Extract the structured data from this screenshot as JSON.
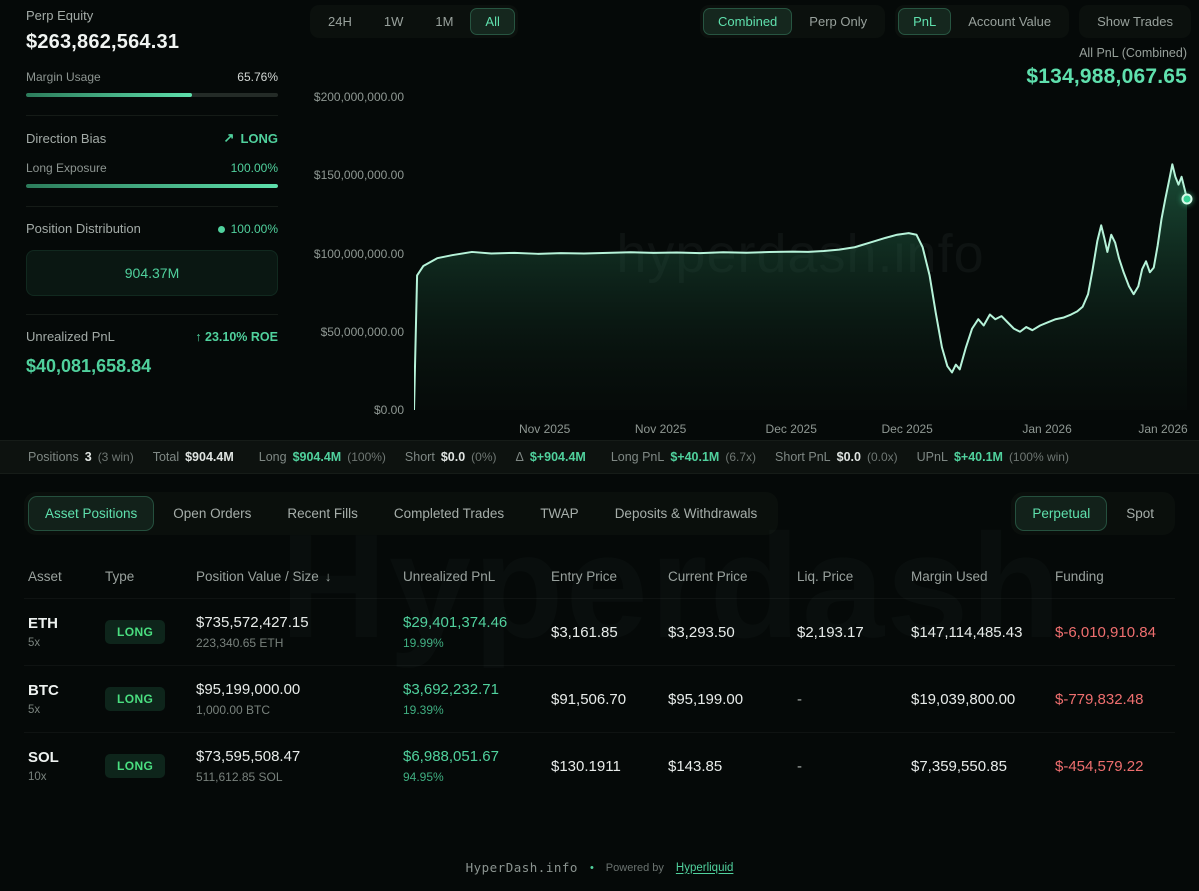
{
  "colors": {
    "accent_green": "#50d19d",
    "bright_green": "#4ade80",
    "chart_line": "#b6f3d9",
    "negative_red": "#ef6f6f",
    "background": "#050908"
  },
  "sidebar": {
    "perp_equity_label": "Perp Equity",
    "perp_equity_value": "$263,862,564.31",
    "margin_usage_label": "Margin Usage",
    "margin_usage_value": "65.76%",
    "margin_usage_pct": 65.76,
    "direction_bias_label": "Direction Bias",
    "direction_bias_arrow": "↗",
    "direction_bias_value": "LONG",
    "long_exposure_label": "Long Exposure",
    "long_exposure_value": "100.00%",
    "long_exposure_pct": 100,
    "position_distribution_label": "Position Distribution",
    "position_distribution_value": "100.00%",
    "position_distribution_box": "904.37M",
    "unrealized_pnl_label": "Unrealized PnL",
    "unrealized_pnl_roe_arrow": "↑",
    "unrealized_pnl_roe": "23.10% ROE",
    "unrealized_pnl_value": "$40,081,658.84"
  },
  "controls": {
    "time_ranges": [
      {
        "label": "24H",
        "active": false
      },
      {
        "label": "1W",
        "active": false
      },
      {
        "label": "1M",
        "active": false
      },
      {
        "label": "All",
        "active": true
      }
    ],
    "mode_buttons": [
      {
        "label": "Combined",
        "active": true
      },
      {
        "label": "Perp Only",
        "active": false
      }
    ],
    "view_buttons": [
      {
        "label": "PnL",
        "active": true
      },
      {
        "label": "Account Value",
        "active": false
      }
    ],
    "show_trades_label": "Show Trades"
  },
  "chart_data": {
    "type": "area",
    "title": "All PnL (Combined)",
    "current_value": "$134,988,067.65",
    "unit": "USD (values in millions in points)",
    "ylim": [
      0,
      200
    ],
    "grid": false,
    "watermark": "hyperdash.info",
    "y_ticks": [
      {
        "label": "$200,000,000.00",
        "value": 200
      },
      {
        "label": "$150,000,000.00",
        "value": 150
      },
      {
        "label": "$100,000,000.00",
        "value": 100
      },
      {
        "label": "$50,000,000.00",
        "value": 50
      },
      {
        "label": "$0.00",
        "value": 0
      }
    ],
    "x_ticks": [
      {
        "label": "Nov 2025",
        "pos": 0.169
      },
      {
        "label": "Nov 2025",
        "pos": 0.319
      },
      {
        "label": "Dec 2025",
        "pos": 0.488
      },
      {
        "label": "Dec 2025",
        "pos": 0.638
      },
      {
        "label": "Jan 2026",
        "pos": 0.819
      },
      {
        "label": "Jan 2026",
        "pos": 0.969
      }
    ],
    "points": [
      [
        0,
        0
      ],
      [
        0.004,
        86
      ],
      [
        0.012,
        92
      ],
      [
        0.03,
        97
      ],
      [
        0.05,
        99
      ],
      [
        0.075,
        101
      ],
      [
        0.1,
        100
      ],
      [
        0.13,
        100.4
      ],
      [
        0.16,
        99.8
      ],
      [
        0.19,
        100.2
      ],
      [
        0.22,
        100
      ],
      [
        0.25,
        100.4
      ],
      [
        0.28,
        100.8
      ],
      [
        0.31,
        100.4
      ],
      [
        0.34,
        100.6
      ],
      [
        0.37,
        100.3
      ],
      [
        0.4,
        100.8
      ],
      [
        0.43,
        100.5
      ],
      [
        0.46,
        100.9
      ],
      [
        0.49,
        101.2
      ],
      [
        0.51,
        101
      ],
      [
        0.53,
        101.6
      ],
      [
        0.55,
        102.5
      ],
      [
        0.57,
        104
      ],
      [
        0.59,
        107
      ],
      [
        0.61,
        110
      ],
      [
        0.625,
        112
      ],
      [
        0.64,
        113
      ],
      [
        0.65,
        112
      ],
      [
        0.658,
        104
      ],
      [
        0.667,
        86
      ],
      [
        0.675,
        62
      ],
      [
        0.683,
        40
      ],
      [
        0.69,
        28
      ],
      [
        0.696,
        24
      ],
      [
        0.701,
        29
      ],
      [
        0.706,
        26
      ],
      [
        0.714,
        40
      ],
      [
        0.722,
        52
      ],
      [
        0.73,
        58
      ],
      [
        0.737,
        54
      ],
      [
        0.745,
        61
      ],
      [
        0.752,
        58
      ],
      [
        0.76,
        60
      ],
      [
        0.768,
        56
      ],
      [
        0.776,
        52
      ],
      [
        0.784,
        50
      ],
      [
        0.792,
        53
      ],
      [
        0.8,
        51
      ],
      [
        0.81,
        54
      ],
      [
        0.82,
        56
      ],
      [
        0.83,
        58
      ],
      [
        0.84,
        59
      ],
      [
        0.85,
        61
      ],
      [
        0.858,
        63
      ],
      [
        0.865,
        66
      ],
      [
        0.872,
        74
      ],
      [
        0.878,
        90
      ],
      [
        0.884,
        108
      ],
      [
        0.889,
        118
      ],
      [
        0.893,
        110
      ],
      [
        0.897,
        101
      ],
      [
        0.902,
        112
      ],
      [
        0.907,
        107
      ],
      [
        0.912,
        97
      ],
      [
        0.918,
        88
      ],
      [
        0.925,
        79
      ],
      [
        0.931,
        74
      ],
      [
        0.937,
        79
      ],
      [
        0.942,
        90
      ],
      [
        0.947,
        95
      ],
      [
        0.952,
        88
      ],
      [
        0.957,
        91
      ],
      [
        0.962,
        105
      ],
      [
        0.967,
        122
      ],
      [
        0.972,
        135
      ],
      [
        0.977,
        147
      ],
      [
        0.981,
        157
      ],
      [
        0.985,
        149
      ],
      [
        0.989,
        144
      ],
      [
        0.993,
        149
      ],
      [
        1.0,
        135
      ]
    ]
  },
  "summary": {
    "items": [
      {
        "label": "Positions",
        "value": "3",
        "extra": "(3 win)",
        "color": "white"
      },
      {
        "label": "Total",
        "value": "$904.4M",
        "extra": "",
        "color": "white"
      },
      {
        "label": "Long",
        "value": "$904.4M",
        "extra": "(100%)",
        "color": "green"
      },
      {
        "label": "Short",
        "value": "$0.0",
        "extra": "(0%)",
        "color": "white"
      },
      {
        "label": "Δ",
        "value": "$+904.4M",
        "extra": "",
        "color": "green"
      },
      {
        "label": "Long PnL",
        "value": "$+40.1M",
        "extra": "(6.7x)",
        "color": "green"
      },
      {
        "label": "Short PnL",
        "value": "$0.0",
        "extra": "(0.0x)",
        "color": "white"
      },
      {
        "label": "UPnL",
        "value": "$+40.1M",
        "extra": "(100% win)",
        "color": "green"
      }
    ]
  },
  "tabs": [
    {
      "label": "Asset Positions",
      "active": true
    },
    {
      "label": "Open Orders",
      "active": false
    },
    {
      "label": "Recent Fills",
      "active": false
    },
    {
      "label": "Completed Trades",
      "active": false
    },
    {
      "label": "TWAP",
      "active": false
    },
    {
      "label": "Deposits & Withdrawals",
      "active": false
    }
  ],
  "market_tabs": [
    {
      "label": "Perpetual",
      "active": true
    },
    {
      "label": "Spot",
      "active": false
    }
  ],
  "table": {
    "headers": [
      "Asset",
      "Type",
      "Position Value / Size",
      "Unrealized PnL",
      "Entry Price",
      "Current Price",
      "Liq. Price",
      "Margin Used",
      "Funding"
    ],
    "sort_icon": "↓",
    "rows": [
      {
        "asset": "ETH",
        "leverage": "5x",
        "type": "LONG",
        "position_value": "$735,572,427.15",
        "position_size": "223,340.65 ETH",
        "unrealized_pnl": "$29,401,374.46",
        "unrealized_pnl_pct": "19.99%",
        "entry_price": "$3,161.85",
        "current_price": "$3,293.50",
        "liq_price": "$2,193.17",
        "margin_used": "$147,114,485.43",
        "funding": "$-6,010,910.84"
      },
      {
        "asset": "BTC",
        "leverage": "5x",
        "type": "LONG",
        "position_value": "$95,199,000.00",
        "position_size": "1,000.00 BTC",
        "unrealized_pnl": "$3,692,232.71",
        "unrealized_pnl_pct": "19.39%",
        "entry_price": "$91,506.70",
        "current_price": "$95,199.00",
        "liq_price": "-",
        "margin_used": "$19,039,800.00",
        "funding": "$-779,832.48"
      },
      {
        "asset": "SOL",
        "leverage": "10x",
        "type": "LONG",
        "position_value": "$73,595,508.47",
        "position_size": "511,612.85 SOL",
        "unrealized_pnl": "$6,988,051.67",
        "unrealized_pnl_pct": "94.95%",
        "entry_price": "$130.1911",
        "current_price": "$143.85",
        "liq_price": "-",
        "margin_used": "$7,359,550.85",
        "funding": "$-454,579.22"
      }
    ]
  },
  "watermarks": {
    "table_watermark": "Hyperdash"
  },
  "footer": {
    "site": "HyperDash.info",
    "separator": "•",
    "powered_prefix": "Powered by",
    "powered_link": "Hyperliquid"
  }
}
